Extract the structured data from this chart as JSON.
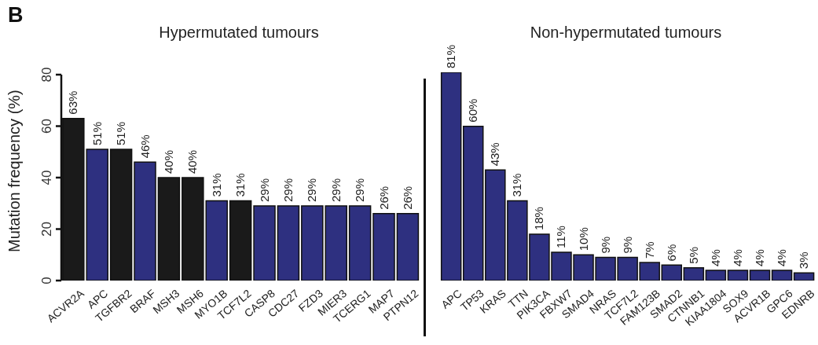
{
  "chart_data": [
    {
      "type": "bar",
      "title": "Hypermutated tumours",
      "ylabel": "Mutation frequency (%)",
      "annotations": [
        "B"
      ],
      "categories": [
        "ACVR2A",
        "APC",
        "TGFBR2",
        "BRAF",
        "MSH3",
        "MSH6",
        "MYO1B",
        "TCF7L2",
        "CASP8",
        "CDC27",
        "FZD3",
        "MIER3",
        "TCERG1",
        "MAP7",
        "PTPN12"
      ],
      "values": [
        63,
        51,
        51,
        46,
        40,
        40,
        31,
        31,
        29,
        29,
        29,
        29,
        29,
        26,
        26
      ],
      "value_labels": [
        "63%",
        "51%",
        "51%",
        "46%",
        "40%",
        "40%",
        "31%",
        "31%",
        "29%",
        "29%",
        "29%",
        "29%",
        "29%",
        "26%",
        "26%"
      ],
      "colors": [
        "#1a1a1a",
        "#2e3080",
        "#1a1a1a",
        "#2e3080",
        "#1a1a1a",
        "#1a1a1a",
        "#2e3080",
        "#1a1a1a",
        "#2e3080",
        "#2e3080",
        "#2e3080",
        "#2e3080",
        "#2e3080",
        "#2e3080",
        "#2e3080"
      ],
      "ylim": [
        0,
        80
      ],
      "yticks": [
        0,
        20,
        40,
        60,
        80
      ],
      "grid": false,
      "legend": false
    },
    {
      "type": "bar",
      "title": "Non-hypermutated tumours",
      "categories": [
        "APC",
        "TP53",
        "KRAS",
        "TTN",
        "PIK3CA",
        "FBXW7",
        "SMAD4",
        "NRAS",
        "TCF7L2",
        "FAM123B",
        "SMAD2",
        "CTNNB1",
        "KIAA1804",
        "SOX9",
        "ACVR1B",
        "GPC6",
        "EDNRB"
      ],
      "values": [
        81,
        60,
        43,
        31,
        18,
        11,
        10,
        9,
        9,
        7,
        6,
        5,
        4,
        4,
        4,
        4,
        3
      ],
      "value_labels": [
        "81%",
        "60%",
        "43%",
        "31%",
        "18%",
        "11%",
        "10%",
        "9%",
        "9%",
        "7%",
        "6%",
        "5%",
        "4%",
        "4%",
        "4%",
        "4%",
        "3%"
      ],
      "color": "#2e3080",
      "tick_labels": "x",
      "grid": false,
      "legend": false
    }
  ]
}
